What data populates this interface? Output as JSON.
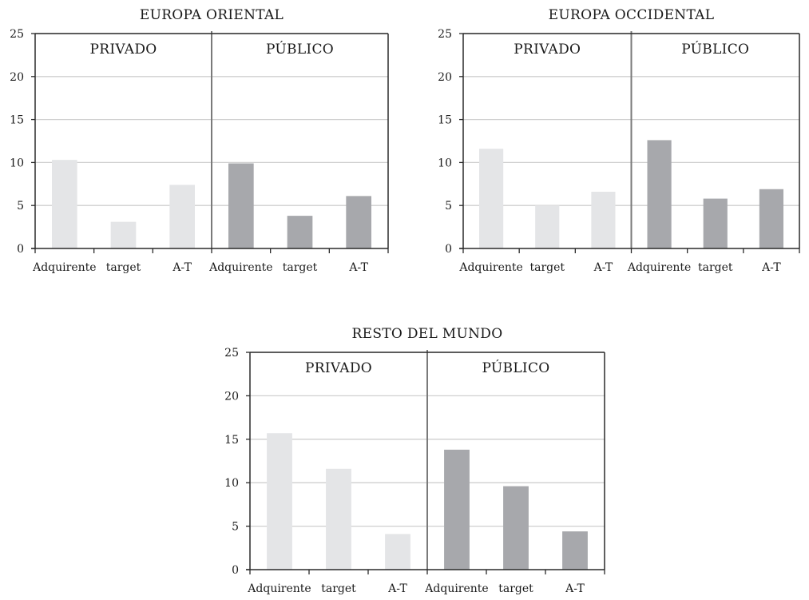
{
  "colors": {
    "privado": "#e4e5e7",
    "publico": "#a7a8ac",
    "grid": "#cfcfcf",
    "axis": "#2a2a2a",
    "divider": "#7a7a7a"
  },
  "chart_data": [
    {
      "type": "bar",
      "title": "EUROPA ORIENTAL",
      "groups": [
        "PRIVADO",
        "PÚBLICO"
      ],
      "categories": [
        "Adquirente",
        "target",
        "A-T"
      ],
      "series": [
        {
          "values": [
            10.3,
            3.1,
            7.4
          ]
        },
        {
          "values": [
            9.9,
            3.8,
            6.1
          ]
        }
      ],
      "yticks": [
        0,
        5,
        10,
        15,
        20,
        25
      ],
      "ylim": [
        0,
        25
      ],
      "grid": true
    },
    {
      "type": "bar",
      "title": "EUROPA OCCIDENTAL",
      "groups": [
        "PRIVADO",
        "PÚBLICO"
      ],
      "categories": [
        "Adquirente",
        "target",
        "A-T"
      ],
      "series": [
        {
          "values": [
            11.6,
            5.0,
            6.6
          ]
        },
        {
          "values": [
            12.6,
            5.8,
            6.9
          ]
        }
      ],
      "yticks": [
        0,
        5,
        10,
        15,
        20,
        25
      ],
      "ylim": [
        0,
        25
      ],
      "grid": true
    },
    {
      "type": "bar",
      "title": "RESTO DEL MUNDO",
      "groups": [
        "PRIVADO",
        "PÚBLICO"
      ],
      "categories": [
        "Adquirente",
        "target",
        "A-T"
      ],
      "series": [
        {
          "values": [
            15.7,
            11.6,
            4.1
          ]
        },
        {
          "values": [
            13.8,
            9.6,
            4.4
          ]
        }
      ],
      "yticks": [
        0,
        5,
        10,
        15,
        20,
        25
      ],
      "ylim": [
        0,
        25
      ],
      "grid": true
    }
  ]
}
